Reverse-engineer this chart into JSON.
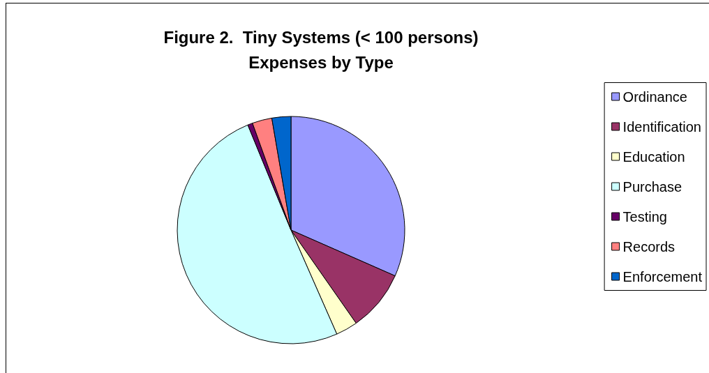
{
  "chart_data": {
    "type": "pie",
    "title": "Figure 2.  Tiny Systems (< 100 persons)\nExpenses by Type",
    "categories": [
      "Ordinance",
      "Identification",
      "Education",
      "Purchase",
      "Testing",
      "Records",
      "Enforcement"
    ],
    "values": [
      31.6,
      8.7,
      3.1,
      50.4,
      0.7,
      2.8,
      2.7
    ],
    "colors": [
      "#9999ff",
      "#993366",
      "#ffffcc",
      "#ccffff",
      "#660066",
      "#ff8080",
      "#0066cc"
    ],
    "legend": "right"
  }
}
